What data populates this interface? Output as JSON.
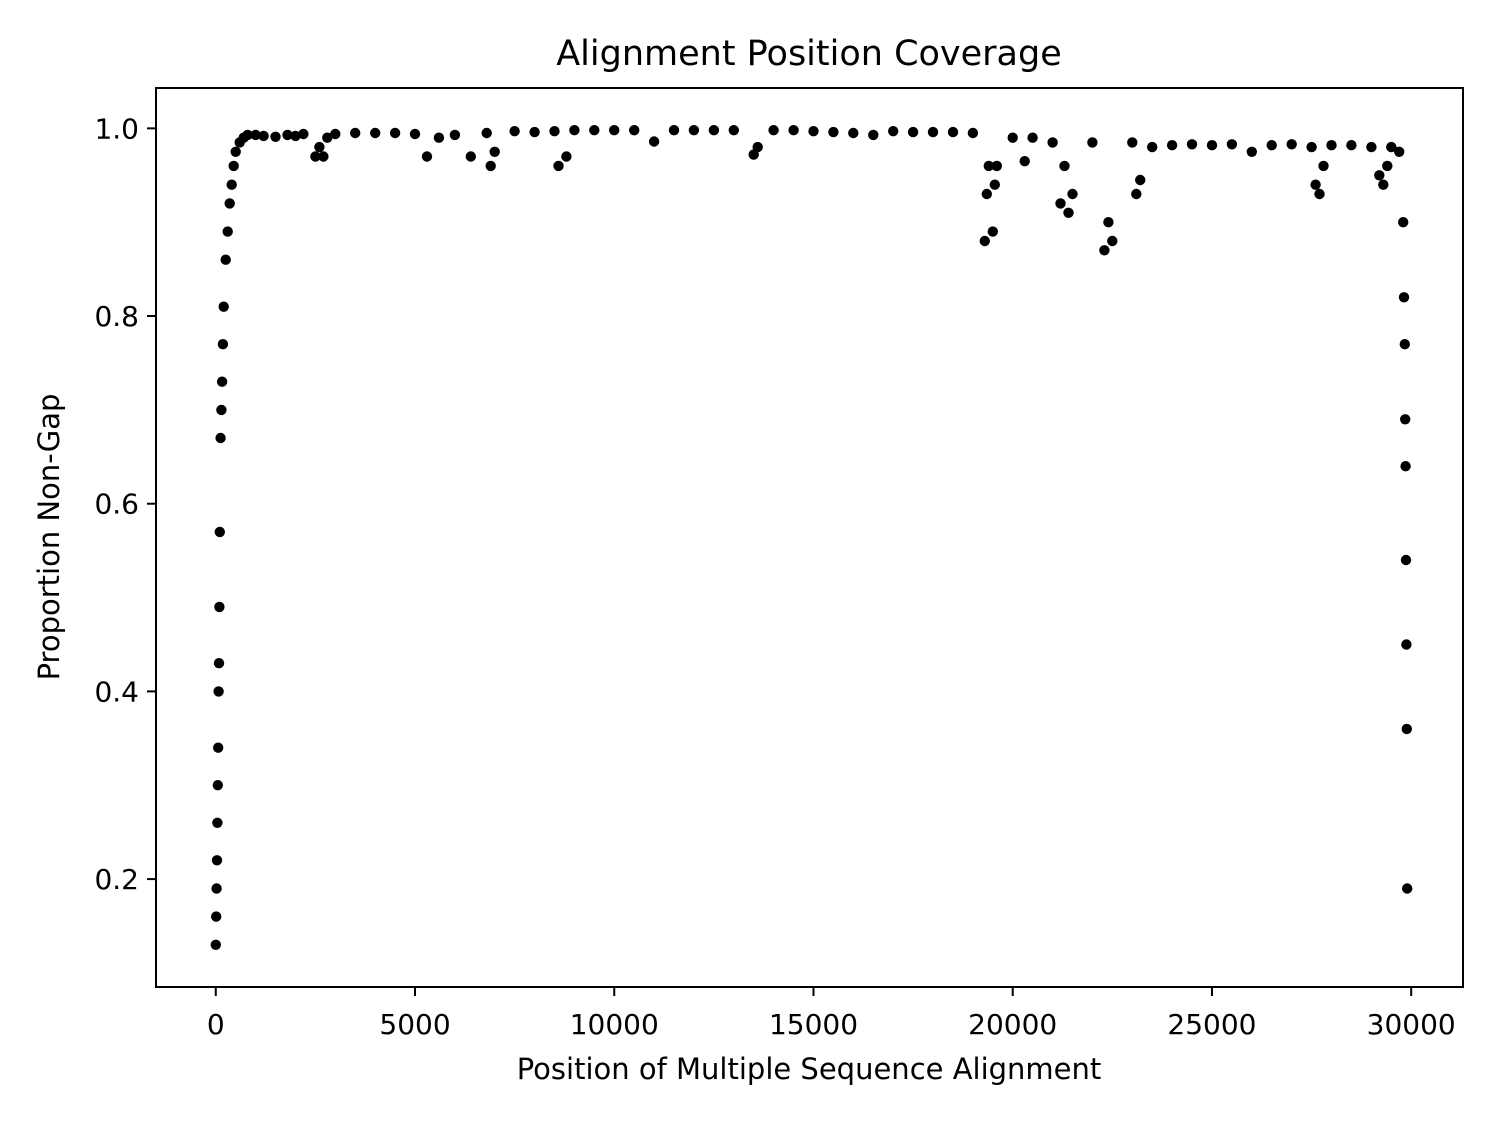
{
  "chart_data": {
    "type": "scatter",
    "title": "Alignment Position Coverage",
    "xlabel": "Position of Multiple Sequence Alignment",
    "ylabel": "Proportion Non-Gap",
    "xlim": [
      -1500,
      31300
    ],
    "ylim": [
      0.085,
      1.043
    ],
    "xticks": [
      0,
      5000,
      10000,
      15000,
      20000,
      25000,
      30000
    ],
    "xtick_labels": [
      "0",
      "5000",
      "10000",
      "15000",
      "20000",
      "25000",
      "30000"
    ],
    "yticks": [
      0.2,
      0.4,
      0.6,
      0.8,
      1.0
    ],
    "ytick_labels": [
      "0.2",
      "0.4",
      "0.6",
      "0.8",
      "1.0"
    ],
    "grid": false,
    "marker_color": "#000000",
    "series": [
      {
        "x": [
          0,
          10,
          20,
          30,
          40,
          50,
          60,
          70,
          80,
          90,
          100,
          120,
          140,
          160,
          180,
          200,
          250,
          300,
          350,
          400,
          450,
          500,
          600,
          700,
          800,
          1000,
          1200,
          1500,
          1800,
          2000,
          2200,
          2500,
          2600,
          2700,
          2800,
          3000,
          3500,
          4000,
          4500,
          5000,
          5300,
          5600,
          6000,
          6400,
          6800,
          6900,
          7000,
          7500,
          8000,
          8500,
          8600,
          8800,
          9000,
          9500,
          10000,
          10500,
          11000,
          11500,
          12000,
          12500,
          13000,
          13500,
          13600,
          14000,
          14500,
          15000,
          15500,
          16000,
          16500,
          17000,
          17500,
          18000,
          18500,
          19000,
          19300,
          19350,
          19400,
          19500,
          19550,
          19600,
          20000,
          20300,
          20500,
          21000,
          21200,
          21300,
          21400,
          21500,
          22000,
          22300,
          22400,
          22500,
          23000,
          23100,
          23200,
          23500,
          24000,
          24500,
          25000,
          25500,
          26000,
          26500,
          27000,
          27500,
          27600,
          27700,
          27800,
          28000,
          28500,
          29000,
          29200,
          29300,
          29400,
          29500,
          29700,
          29800,
          29820,
          29840,
          29850,
          29860,
          29870,
          29880,
          29890,
          29900
        ],
        "y": [
          0.13,
          0.16,
          0.19,
          0.22,
          0.26,
          0.3,
          0.34,
          0.4,
          0.43,
          0.49,
          0.57,
          0.67,
          0.7,
          0.73,
          0.77,
          0.81,
          0.86,
          0.89,
          0.92,
          0.94,
          0.96,
          0.975,
          0.985,
          0.99,
          0.993,
          0.993,
          0.992,
          0.991,
          0.993,
          0.992,
          0.994,
          0.97,
          0.98,
          0.97,
          0.99,
          0.994,
          0.995,
          0.995,
          0.995,
          0.994,
          0.97,
          0.99,
          0.993,
          0.97,
          0.995,
          0.96,
          0.975,
          0.997,
          0.996,
          0.997,
          0.96,
          0.97,
          0.998,
          0.998,
          0.998,
          0.998,
          0.986,
          0.998,
          0.998,
          0.998,
          0.998,
          0.972,
          0.98,
          0.998,
          0.998,
          0.997,
          0.996,
          0.995,
          0.993,
          0.997,
          0.996,
          0.996,
          0.996,
          0.995,
          0.88,
          0.93,
          0.96,
          0.89,
          0.94,
          0.96,
          0.99,
          0.965,
          0.99,
          0.985,
          0.92,
          0.96,
          0.91,
          0.93,
          0.985,
          0.87,
          0.9,
          0.88,
          0.985,
          0.93,
          0.945,
          0.98,
          0.982,
          0.983,
          0.982,
          0.983,
          0.975,
          0.982,
          0.983,
          0.98,
          0.94,
          0.93,
          0.96,
          0.982,
          0.982,
          0.98,
          0.95,
          0.94,
          0.96,
          0.98,
          0.975,
          0.9,
          0.82,
          0.77,
          0.69,
          0.64,
          0.54,
          0.45,
          0.36,
          0.19
        ]
      }
    ]
  }
}
